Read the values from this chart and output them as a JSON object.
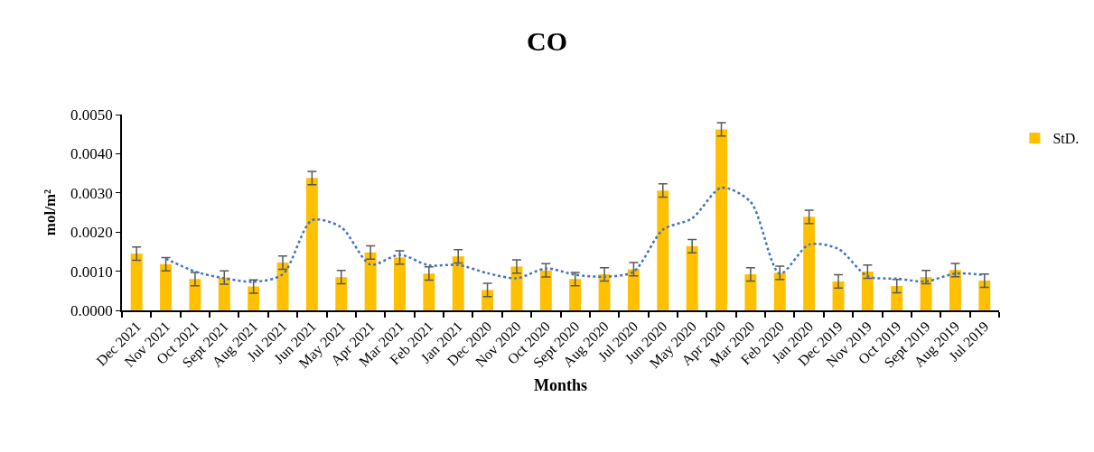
{
  "chart_data": {
    "type": "bar",
    "title": "CO",
    "xlabel": "Months",
    "ylabel": "mol/m²",
    "categories": [
      "Dec 2021",
      "Nov 2021",
      "Oct 2021",
      "Sept 2021",
      "Aug 2021",
      "Jul 2021",
      "Jun 2021",
      "May 2021",
      "Apr 2021",
      "Mar 2021",
      "Feb 2021",
      "Jan 2021",
      "Dec 2020",
      "Nov 2020",
      "Oct 2020",
      "Sept 2020",
      "Aug 2020",
      "Jul 2020",
      "Jun 2020",
      "May 2020",
      "Apr 2020",
      "Mar 2020",
      "Feb 2020",
      "Jan 2020",
      "Dec 2019",
      "Nov 2019",
      "Oct 2019",
      "Sept 2019",
      "Aug 2019",
      "Jul 2019"
    ],
    "series": [
      {
        "name": "StD.",
        "color": "#ffc000",
        "values": [
          0.00145,
          0.00118,
          0.0008,
          0.00084,
          0.00061,
          0.00122,
          0.00338,
          0.00085,
          0.00148,
          0.00135,
          0.00094,
          0.00138,
          0.00052,
          0.00112,
          0.00102,
          0.0008,
          0.00092,
          0.00105,
          0.00306,
          0.00164,
          0.00462,
          0.00092,
          0.00096,
          0.00239,
          0.00074,
          0.00099,
          0.00062,
          0.00085,
          0.00103,
          0.00076
        ],
        "errors": [
          0.00017,
          0.00017,
          0.00017,
          0.00017,
          0.00017,
          0.00017,
          0.00017,
          0.00017,
          0.00017,
          0.00017,
          0.00017,
          0.00017,
          0.00017,
          0.00017,
          0.00017,
          0.00017,
          0.00017,
          0.00017,
          0.00017,
          0.00017,
          0.00017,
          0.00017,
          0.00017,
          0.00017,
          0.00017,
          0.00017,
          0.00017,
          0.00017,
          0.00017,
          0.00017
        ]
      },
      {
        "type": "line",
        "color": "#4472c4",
        "line_style": "dotted",
        "values": [
          null,
          0.00132,
          0.00099,
          0.00082,
          0.00073,
          0.00092,
          0.0023,
          0.00212,
          0.00117,
          0.00142,
          0.00115,
          0.00116,
          0.00095,
          0.00082,
          0.00107,
          0.00091,
          0.00086,
          0.00099,
          0.00206,
          0.00235,
          0.00313,
          0.00277,
          0.00094,
          0.00168,
          0.00157,
          0.00087,
          0.00081,
          0.00074,
          0.00094,
          0.0009
        ]
      }
    ],
    "ylim": [
      0,
      0.005
    ],
    "yticks": [
      {
        "value": 0,
        "label": "0.0000"
      },
      {
        "value": 0.001,
        "label": "0.0010"
      },
      {
        "value": 0.002,
        "label": "0.0020"
      },
      {
        "value": 0.003,
        "label": "0.0030"
      },
      {
        "value": 0.004,
        "label": "0.0040"
      },
      {
        "value": 0.005,
        "label": "0.0050"
      }
    ],
    "legend": "top right"
  }
}
